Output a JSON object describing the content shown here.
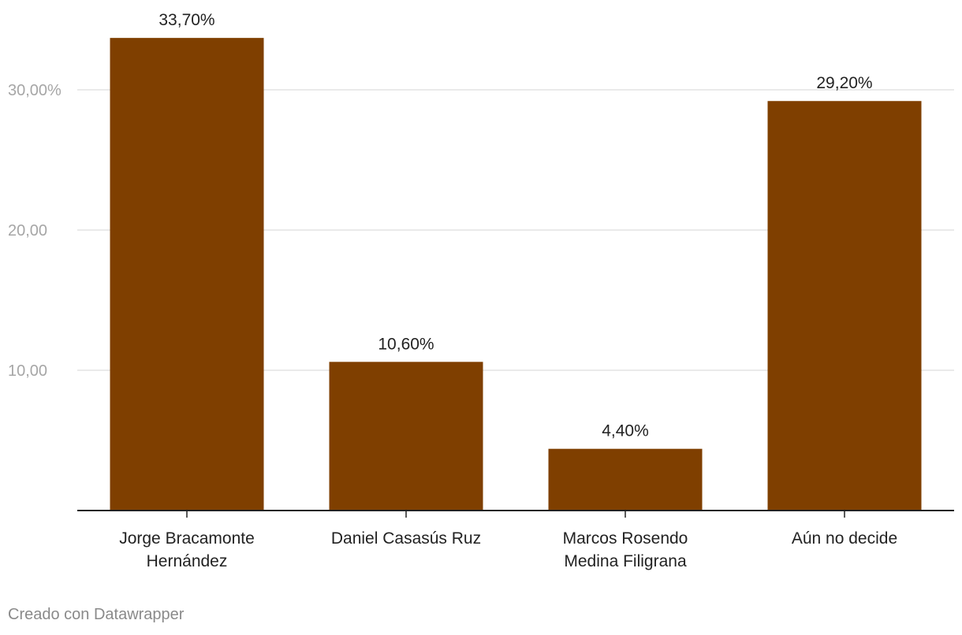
{
  "chart_data": {
    "type": "bar",
    "categories": [
      [
        "Jorge Bracamonte",
        "Hernández"
      ],
      [
        "Daniel Casasús Ruz"
      ],
      [
        "Marcos Rosendo",
        "Medina Filigrana"
      ],
      [
        "Aún no decide"
      ]
    ],
    "values": [
      33.7,
      10.6,
      4.4,
      29.2
    ],
    "value_labels": [
      "33,70%",
      "10,60%",
      "4,40%",
      "29,20%"
    ],
    "yticks": [
      {
        "value": 10,
        "label": "10,00"
      },
      {
        "value": 20,
        "label": "20,00"
      },
      {
        "value": 30,
        "label": "30,00%"
      }
    ],
    "ylim": [
      0,
      37
    ],
    "grid": true,
    "bar_color": "#7f3f00",
    "grid_color": "#e3e3e3",
    "tick_label_color": "#a6a6a6"
  },
  "footer": {
    "credit": "Creado con Datawrapper"
  }
}
